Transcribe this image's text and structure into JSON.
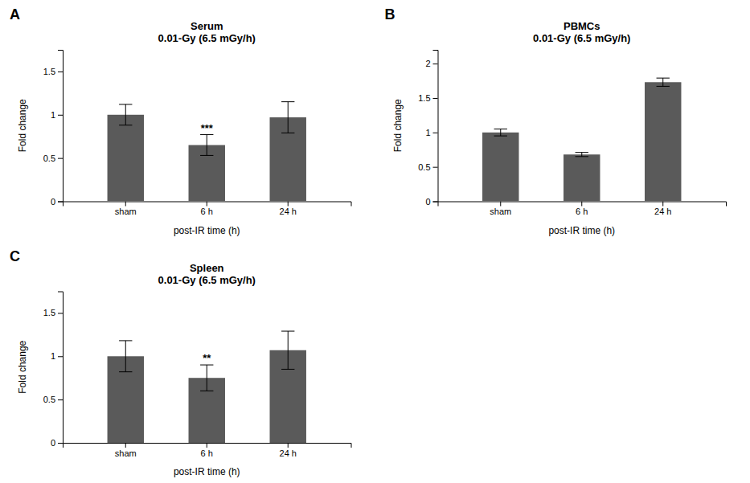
{
  "chart_data": [
    {
      "type": "bar",
      "panel_label": "A",
      "title": "Serum\n0.01-Gy (6.5 mGy/h)",
      "xlabel": "post-IR time (h)",
      "ylabel": "Fold change",
      "categories": [
        "sham",
        "6 h",
        "24 h"
      ],
      "values": [
        1.0,
        0.65,
        0.97
      ],
      "errors": [
        0.12,
        0.12,
        0.18
      ],
      "significance": [
        null,
        "***",
        null
      ],
      "ylim": [
        0,
        1.75
      ],
      "yticks": [
        0,
        0.5,
        1,
        1.5
      ],
      "color": "#5a5a5a",
      "grid": false
    },
    {
      "type": "bar",
      "panel_label": "B",
      "title": "PBMCs\n0.01-Gy (6.5 mGy/h)",
      "xlabel": "post-IR time (h)",
      "ylabel": "Fold change",
      "categories": [
        "sham",
        "6 h",
        "24 h"
      ],
      "values": [
        1.0,
        0.68,
        1.73
      ],
      "errors": [
        0.05,
        0.03,
        0.06
      ],
      "significance": [
        null,
        null,
        null
      ],
      "ylim": [
        0,
        2.2
      ],
      "yticks": [
        0,
        0.5,
        1,
        1.5,
        2
      ],
      "color": "#5a5a5a",
      "grid": false
    },
    {
      "type": "bar",
      "panel_label": "C",
      "title": "Spleen\n0.01-Gy (6.5 mGy/h)",
      "xlabel": "post-IR time (h)",
      "ylabel": "Fold change",
      "categories": [
        "sham",
        "6 h",
        "24 h"
      ],
      "values": [
        1.0,
        0.75,
        1.07
      ],
      "errors": [
        0.18,
        0.15,
        0.22
      ],
      "significance": [
        null,
        "**",
        null
      ],
      "ylim": [
        0,
        1.75
      ],
      "yticks": [
        0,
        0.5,
        1,
        1.5
      ],
      "color": "#5a5a5a",
      "grid": false
    }
  ]
}
